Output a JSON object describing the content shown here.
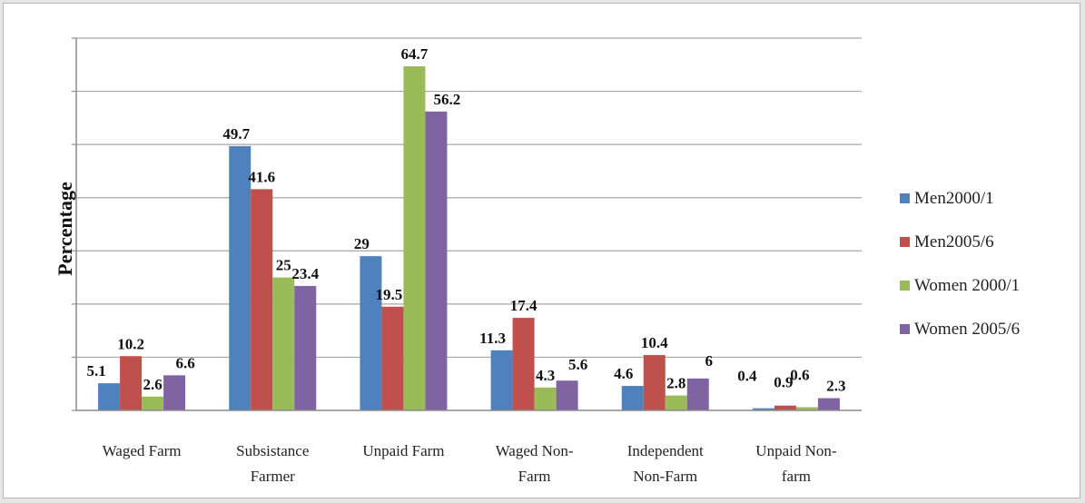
{
  "chart_data": {
    "type": "bar",
    "title": "",
    "xlabel": "",
    "ylabel": "Percentage",
    "ylim": [
      0,
      70
    ],
    "ytick_step": 10,
    "grid": true,
    "legend_position": "right",
    "categories": [
      [
        "Waged Farm"
      ],
      [
        "Subsistance",
        "Farmer"
      ],
      [
        "Unpaid Farm"
      ],
      [
        "Waged Non-",
        "Farm"
      ],
      [
        "Independent",
        "Non-Farm"
      ],
      [
        "Unpaid Non-",
        "farm"
      ]
    ],
    "series": [
      {
        "name": "Men2000/1",
        "color": "#4f81bd",
        "values": [
          5.1,
          49.7,
          29,
          11.3,
          4.6,
          0.4
        ],
        "labels": [
          "5.1",
          "49.7",
          "29",
          "11.3",
          "4.6",
          "0.4"
        ]
      },
      {
        "name": "Men2005/6",
        "color": "#c0504d",
        "values": [
          10.2,
          41.6,
          19.5,
          17.4,
          10.4,
          0.9
        ],
        "labels": [
          "10.2",
          "41.6",
          "19.5",
          "17.4",
          "10.4",
          "0.9"
        ]
      },
      {
        "name": "Women 2000/1",
        "color": "#9bbb59",
        "values": [
          2.6,
          25,
          64.7,
          4.3,
          2.8,
          0.6
        ],
        "labels": [
          "2.6",
          "25",
          "64.7",
          "4.3",
          "2.8",
          "0.6"
        ]
      },
      {
        "name": "Women 2005/6",
        "color": "#8064a2",
        "values": [
          6.6,
          23.4,
          56.2,
          5.6,
          6,
          2.3
        ],
        "labels": [
          "6.6",
          "23.4",
          "56.2",
          "5.6",
          "6",
          "2.3"
        ]
      }
    ]
  }
}
